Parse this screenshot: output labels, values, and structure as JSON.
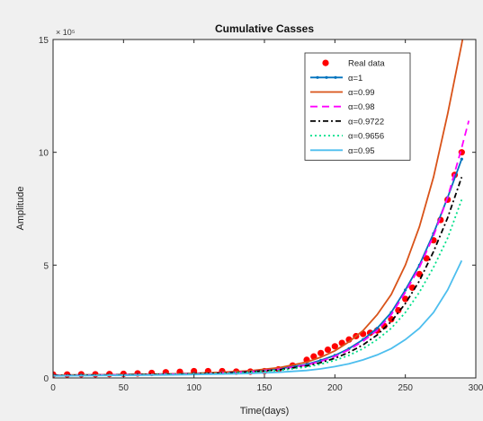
{
  "chart_data": {
    "type": "line",
    "title": "Cumulative Casses",
    "xlabel": "Time(days)",
    "ylabel": "Amplitude",
    "xlim": [
      0,
      300
    ],
    "ylim": [
      0,
      15
    ],
    "xticks": [
      "0",
      "50",
      "100",
      "150",
      "200",
      "250",
      "300"
    ],
    "yticks": [
      "0",
      "5",
      "10",
      "15"
    ],
    "y_exponent_label": "× 10⁵",
    "grid": false,
    "legend_position": "top-right",
    "real_data": {
      "name": "Real data",
      "color": "#ff0000",
      "x": [
        0,
        10,
        20,
        30,
        40,
        50,
        60,
        70,
        80,
        90,
        100,
        110,
        120,
        130,
        140,
        150,
        160,
        170,
        180,
        185,
        190,
        195,
        200,
        205,
        210,
        215,
        220,
        225,
        230,
        235,
        240,
        245,
        250,
        255,
        260,
        265,
        270,
        275,
        280,
        285,
        290
      ],
      "y": [
        0.15,
        0.15,
        0.16,
        0.16,
        0.17,
        0.18,
        0.2,
        0.22,
        0.25,
        0.27,
        0.3,
        0.3,
        0.3,
        0.28,
        0.28,
        0.3,
        0.38,
        0.55,
        0.8,
        0.95,
        1.1,
        1.25,
        1.4,
        1.55,
        1.7,
        1.85,
        1.95,
        2.0,
        2.1,
        2.3,
        2.6,
        3.0,
        3.5,
        4.0,
        4.6,
        5.3,
        6.1,
        7.0,
        7.9,
        9.0,
        10.0
      ]
    },
    "x": [
      0,
      20,
      40,
      60,
      80,
      100,
      120,
      140,
      160,
      180,
      190,
      200,
      210,
      220,
      230,
      240,
      250,
      260,
      270,
      280,
      290,
      295
    ],
    "series": [
      {
        "name": "α=1",
        "color": "#0072bd",
        "dash": "",
        "marker": "dot",
        "values": [
          0.12,
          0.13,
          0.14,
          0.15,
          0.17,
          0.2,
          0.24,
          0.3,
          0.4,
          0.6,
          0.78,
          1.0,
          1.3,
          1.7,
          2.2,
          2.9,
          3.9,
          5.0,
          6.4,
          8.0,
          9.7,
          null
        ]
      },
      {
        "name": "α=0.99",
        "color": "#d95319",
        "dash": "",
        "values": [
          0.12,
          0.13,
          0.14,
          0.15,
          0.17,
          0.2,
          0.25,
          0.32,
          0.45,
          0.7,
          0.92,
          1.2,
          1.6,
          2.1,
          2.8,
          3.7,
          5.0,
          6.7,
          8.9,
          11.7,
          14.8,
          16.5
        ]
      },
      {
        "name": "α=0.98",
        "color": "#ff00ff",
        "dash": "8,5",
        "values": [
          0.11,
          0.12,
          0.13,
          0.14,
          0.16,
          0.18,
          0.22,
          0.28,
          0.38,
          0.57,
          0.74,
          0.95,
          1.25,
          1.63,
          2.1,
          2.8,
          3.8,
          4.9,
          6.3,
          8.0,
          10.2,
          11.4
        ]
      },
      {
        "name": "α=0.9722",
        "color": "#000000",
        "dash": "6,3,2,3",
        "values": [
          0.11,
          0.12,
          0.13,
          0.14,
          0.16,
          0.18,
          0.21,
          0.27,
          0.36,
          0.53,
          0.68,
          0.87,
          1.13,
          1.47,
          1.9,
          2.5,
          3.3,
          4.3,
          5.6,
          7.1,
          8.9,
          null
        ]
      },
      {
        "name": "α=0.9656",
        "color": "#00e08a",
        "dash": "2,3",
        "values": [
          0.1,
          0.11,
          0.12,
          0.13,
          0.15,
          0.17,
          0.2,
          0.25,
          0.33,
          0.48,
          0.61,
          0.78,
          1.0,
          1.3,
          1.7,
          2.2,
          2.9,
          3.8,
          4.9,
          6.2,
          7.9,
          null
        ]
      },
      {
        "name": "α=0.95",
        "color": "#4dbeee",
        "dash": "",
        "values": [
          0.09,
          0.1,
          0.11,
          0.12,
          0.13,
          0.15,
          0.17,
          0.2,
          0.25,
          0.33,
          0.4,
          0.5,
          0.63,
          0.8,
          1.02,
          1.3,
          1.7,
          2.2,
          2.9,
          3.9,
          5.2,
          null
        ]
      }
    ]
  }
}
